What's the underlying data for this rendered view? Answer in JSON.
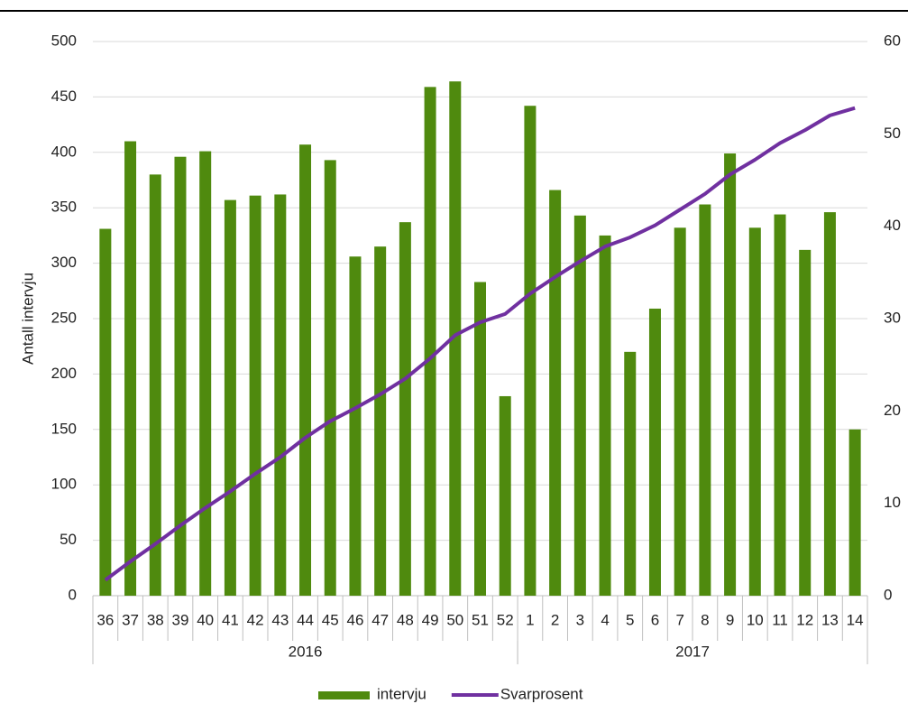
{
  "chart_data": {
    "type": "bar_line",
    "y_label": "Antall intervju",
    "groups": [
      {
        "label": "2016",
        "categories": [
          "36",
          "37",
          "38",
          "39",
          "40",
          "41",
          "42",
          "43",
          "44",
          "45",
          "46",
          "47",
          "48",
          "49",
          "50",
          "51",
          "52"
        ]
      },
      {
        "label": "2017",
        "categories": [
          "1",
          "2",
          "3",
          "4",
          "5",
          "6",
          "7",
          "8",
          "9",
          "10",
          "11",
          "12",
          "13",
          "14"
        ]
      }
    ],
    "series": [
      {
        "name": "intervju",
        "type": "bar",
        "color": "#4f8a0e",
        "values": [
          331,
          410,
          380,
          396,
          401,
          357,
          361,
          362,
          407,
          393,
          306,
          315,
          337,
          459,
          464,
          283,
          180,
          442,
          366,
          343,
          325,
          220,
          259,
          332,
          353,
          399,
          332,
          344,
          312,
          346,
          150
        ]
      },
      {
        "name": "Svarprosent",
        "type": "line",
        "axis": "y2",
        "color": "#7030a0",
        "values": [
          1.7,
          3.7,
          5.6,
          7.6,
          9.5,
          11.3,
          13.2,
          15.0,
          17.1,
          18.9,
          20.3,
          21.8,
          23.5,
          25.7,
          28.2,
          29.6,
          30.5,
          32.7,
          34.5,
          36.2,
          37.8,
          38.8,
          40.1,
          41.8,
          43.5,
          45.6,
          47.2,
          49.0,
          50.4,
          52.0,
          52.8
        ]
      }
    ],
    "ylim": [
      0,
      500
    ],
    "yticks": [
      0,
      50,
      100,
      150,
      200,
      250,
      300,
      350,
      400,
      450,
      500
    ],
    "y2lim": [
      0,
      60
    ],
    "y2ticks": [
      0,
      10,
      20,
      30,
      40,
      50,
      60
    ],
    "grid": true,
    "legend": "bottom"
  }
}
